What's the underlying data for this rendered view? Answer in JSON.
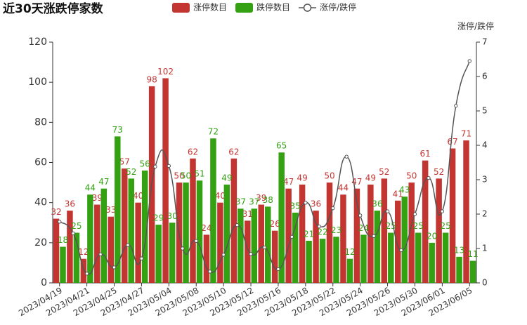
{
  "chart_data": {
    "type": "bar",
    "title": "近30天涨跌停家数",
    "y2_label": "涨停/跌停",
    "categories": [
      "2023/04/19",
      null,
      "2023/04/21",
      null,
      "2023/04/25",
      null,
      "2023/04/27",
      null,
      "2023/05/04",
      null,
      "2023/05/08",
      null,
      "2023/05/10",
      null,
      "2023/05/12",
      null,
      "2023/05/16",
      null,
      "2023/05/18",
      null,
      "2023/05/22",
      null,
      "2023/05/24",
      null,
      "2023/05/26",
      null,
      "2023/05/30",
      null,
      "2023/06/01",
      null,
      "2023/06/05"
    ],
    "series": [
      {
        "name": "涨停数目",
        "type": "bar",
        "color": "#c23531",
        "values": [
          32,
          36,
          12,
          39,
          33,
          57,
          40,
          98,
          102,
          50,
          62,
          24,
          40,
          62,
          31,
          39,
          26,
          47,
          49,
          36,
          50,
          44,
          47,
          49,
          52,
          41,
          50,
          61,
          52,
          67,
          71
        ]
      },
      {
        "name": "跌停数目",
        "type": "bar",
        "color": "#33a112",
        "values": [
          18,
          25,
          44,
          47,
          73,
          52,
          56,
          29,
          30,
          50,
          51,
          72,
          49,
          37,
          37,
          38,
          65,
          35,
          21,
          22,
          23,
          12,
          24,
          36,
          25,
          43,
          25,
          20,
          25,
          13,
          11
        ]
      },
      {
        "name": "涨停/跌停",
        "type": "line",
        "axis": "y2",
        "color": "#555555",
        "values": [
          1.78,
          1.44,
          0.27,
          0.83,
          0.45,
          1.1,
          0.71,
          3.38,
          3.4,
          1.0,
          1.22,
          0.33,
          0.82,
          1.68,
          0.84,
          1.03,
          0.4,
          1.34,
          2.33,
          1.64,
          2.17,
          3.67,
          1.96,
          1.36,
          2.08,
          0.95,
          2.0,
          3.05,
          2.08,
          5.15,
          6.45
        ]
      }
    ],
    "ylim": [
      0,
      120
    ],
    "yticks": [
      0,
      20,
      40,
      60,
      80,
      100,
      120
    ],
    "y2lim": [
      0,
      7
    ],
    "y2ticks": [
      0,
      1,
      2,
      3,
      4,
      5,
      6,
      7
    ],
    "grid": false
  }
}
